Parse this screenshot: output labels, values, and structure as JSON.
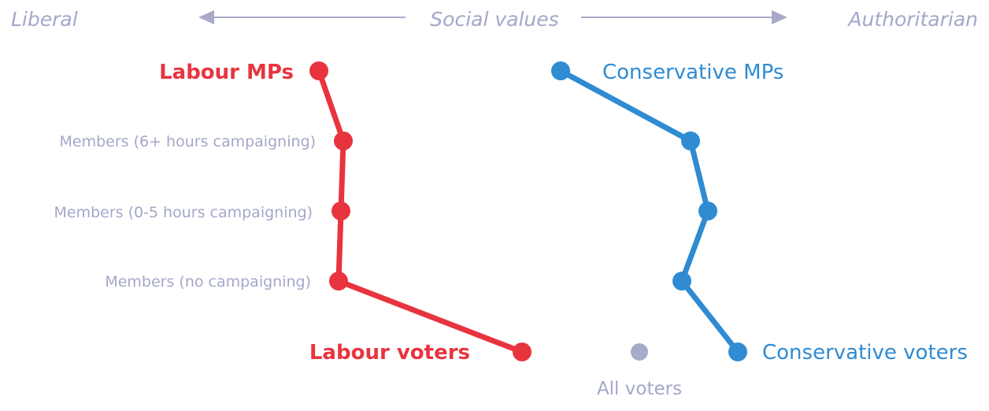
{
  "chart_data": {
    "type": "scatter",
    "axis": {
      "left_label": "Liberal",
      "title": "Social values",
      "right_label": "Authoritarian",
      "xlim": [
        0,
        1256
      ]
    },
    "rows": [
      "Members (6+ hours campaigning)",
      "Members (0-5 hours campaigning)",
      "Members (no campaigning)"
    ],
    "series": [
      {
        "name": "Labour",
        "mps_label": "Labour MPs",
        "voters_label": "Labour voters",
        "x": [
          405,
          436,
          433,
          430,
          663
        ]
      },
      {
        "name": "Conservative",
        "mps_label": "Conservative MPs",
        "voters_label": "Conservative voters",
        "x": [
          712,
          877,
          899,
          866,
          937
        ]
      }
    ],
    "all_voters": {
      "label": "All voters",
      "x": 812
    }
  },
  "colors": {
    "labour": "#e8343f",
    "conservative": "#2f8bd2",
    "all_voters_point": "#a9aac9",
    "text_muted": "#a4a7c9",
    "axis_arrow": "#a9aac9"
  }
}
